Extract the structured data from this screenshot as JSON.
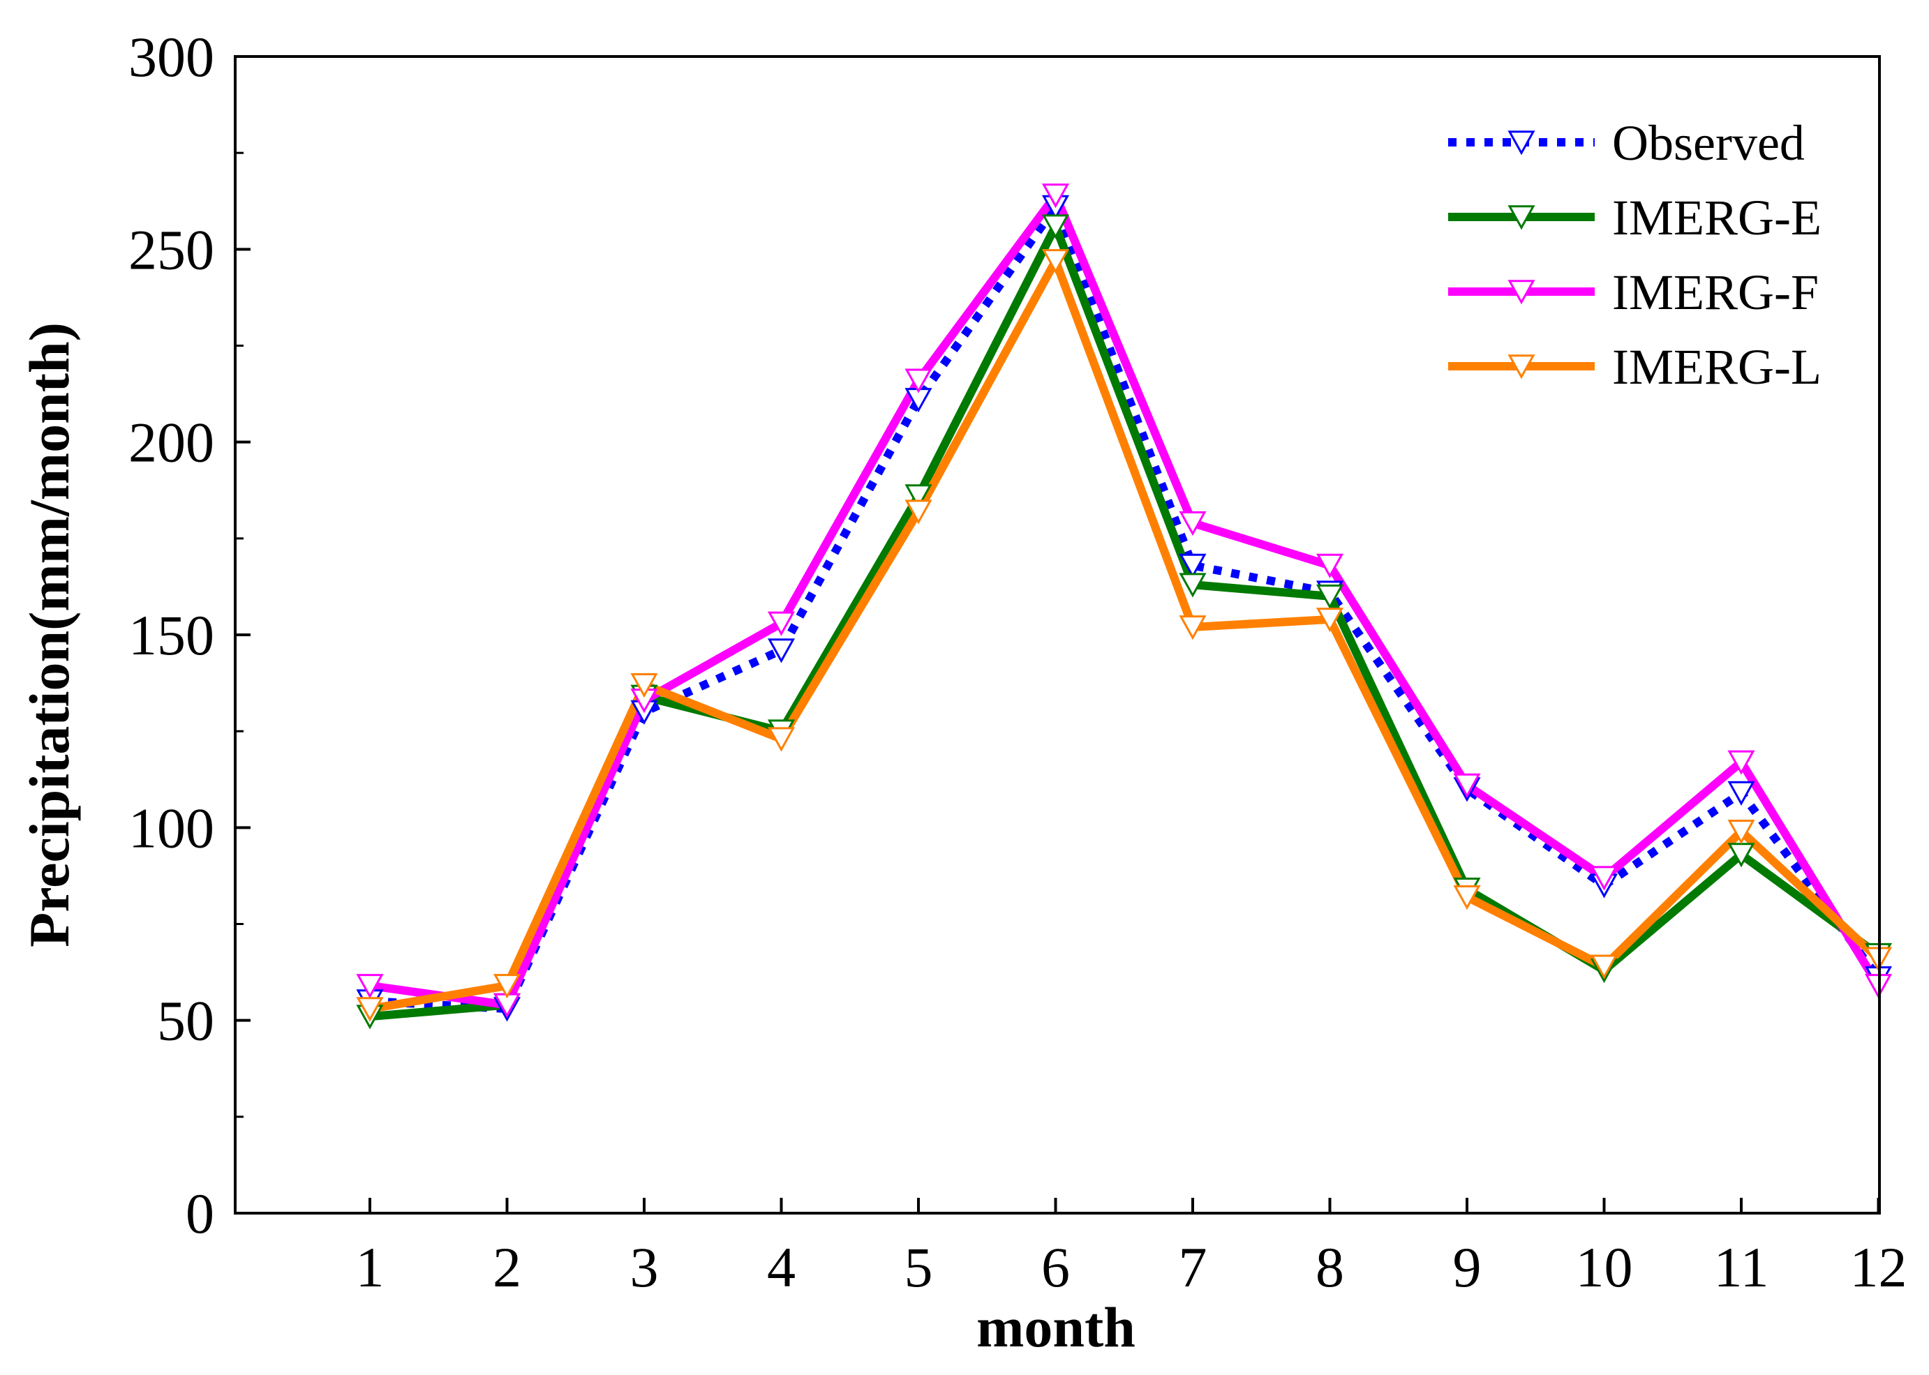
{
  "chart_data": {
    "type": "line",
    "title": "",
    "xlabel": "month",
    "ylabel": "Precipitation(mm/month)",
    "categories": [
      "1",
      "2",
      "3",
      "4",
      "5",
      "6",
      "7",
      "8",
      "9",
      "10",
      "11",
      "12"
    ],
    "ylim": [
      0,
      300
    ],
    "yticks": [
      "0",
      "50",
      "100",
      "150",
      "200",
      "250",
      "300"
    ],
    "legend_position": "top-right",
    "series": [
      {
        "name": "Observed",
        "color": "#0000ff",
        "style": "dotted",
        "values": [
          55,
          53,
          130,
          146,
          211,
          261,
          168,
          161,
          110,
          85,
          109,
          61
        ]
      },
      {
        "name": "IMERG-E",
        "color": "#007a00",
        "style": "solid",
        "values": [
          51,
          54,
          134,
          125,
          186,
          256,
          163,
          160,
          84,
          63,
          93,
          67
        ]
      },
      {
        "name": "IMERG-F",
        "color": "#ff00ff",
        "style": "solid",
        "values": [
          59,
          54,
          133,
          153,
          216,
          264,
          179,
          168,
          111,
          87,
          117,
          59
        ]
      },
      {
        "name": "IMERG-L",
        "color": "#ff8000",
        "style": "solid",
        "values": [
          53,
          59,
          137,
          123,
          182,
          247,
          152,
          154,
          82,
          64,
          99,
          66
        ]
      }
    ]
  }
}
